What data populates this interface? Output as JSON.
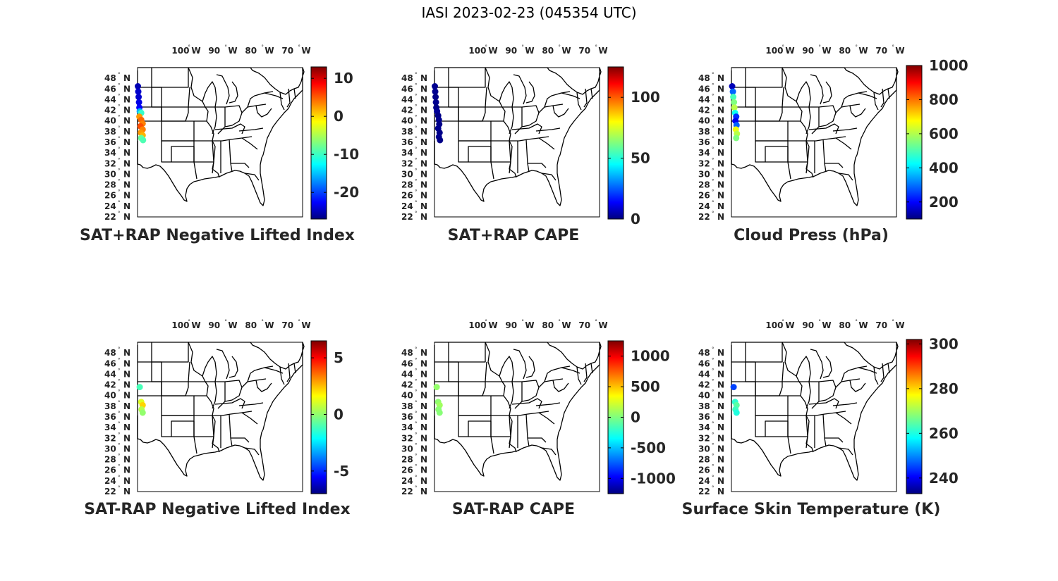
{
  "figure_title": "IASI 2023-02-23 (045354 UTC)",
  "lon_ticks": [
    {
      "deg": 100,
      "label": "100",
      "hemi": "W"
    },
    {
      "deg": 90,
      "label": "90",
      "hemi": "W"
    },
    {
      "deg": 80,
      "label": "80",
      "hemi": "W"
    },
    {
      "deg": 70,
      "label": "70",
      "hemi": "W"
    }
  ],
  "lat_ticks": [
    {
      "deg": 48,
      "label": "48",
      "hemi": "N"
    },
    {
      "deg": 46,
      "label": "46",
      "hemi": "N"
    },
    {
      "deg": 44,
      "label": "44",
      "hemi": "N"
    },
    {
      "deg": 42,
      "label": "42",
      "hemi": "N"
    },
    {
      "deg": 40,
      "label": "40",
      "hemi": "N"
    },
    {
      "deg": 38,
      "label": "38",
      "hemi": "N"
    },
    {
      "deg": 36,
      "label": "36",
      "hemi": "N"
    },
    {
      "deg": 34,
      "label": "34",
      "hemi": "N"
    },
    {
      "deg": 32,
      "label": "32",
      "hemi": "N"
    },
    {
      "deg": 30,
      "label": "30",
      "hemi": "N"
    },
    {
      "deg": 28,
      "label": "28",
      "hemi": "N"
    },
    {
      "deg": 26,
      "label": "26",
      "hemi": "N"
    },
    {
      "deg": 24,
      "label": "24",
      "hemi": "N"
    },
    {
      "deg": 22,
      "label": "22",
      "hemi": "N"
    }
  ],
  "map_extent": {
    "lon": [
      -112,
      -67
    ],
    "lat": [
      22,
      50
    ]
  },
  "colormap": "jet",
  "outline_color": "#000000",
  "panels": [
    {
      "title": "SAT+RAP Negative Lifted Index",
      "colorbar": {
        "min": -27,
        "max": 13,
        "ticks": [
          {
            "value": 10,
            "label": "10"
          },
          {
            "value": 0,
            "label": "0"
          },
          {
            "value": -10,
            "label": "-10"
          },
          {
            "value": -20,
            "label": "-20"
          }
        ]
      },
      "points": [
        {
          "lon": -111.9,
          "lat": 46.5,
          "value": -25
        },
        {
          "lon": -111.8,
          "lat": 45.5,
          "value": -24
        },
        {
          "lon": -111.7,
          "lat": 44.5,
          "value": -24
        },
        {
          "lon": -111.6,
          "lat": 43.5,
          "value": -23
        },
        {
          "lon": -111.5,
          "lat": 42.5,
          "value": -22
        },
        {
          "lon": -111.4,
          "lat": 41.8,
          "value": -15
        },
        {
          "lon": -111.0,
          "lat": 41.5,
          "value": -10
        },
        {
          "lon": -111.5,
          "lat": 40.8,
          "value": 2
        },
        {
          "lon": -111.0,
          "lat": 40.2,
          "value": 4
        },
        {
          "lon": -110.6,
          "lat": 39.5,
          "value": 3
        },
        {
          "lon": -111.2,
          "lat": 39.0,
          "value": 5
        },
        {
          "lon": -110.6,
          "lat": 38.4,
          "value": 3
        },
        {
          "lon": -111.1,
          "lat": 37.8,
          "value": 2
        },
        {
          "lon": -110.6,
          "lat": 37.3,
          "value": 1
        },
        {
          "lon": -111.0,
          "lat": 36.8,
          "value": -8
        },
        {
          "lon": -110.5,
          "lat": 36.4,
          "value": -9
        }
      ]
    },
    {
      "title": "SAT+RAP CAPE",
      "colorbar": {
        "min": 0,
        "max": 125,
        "ticks": [
          {
            "value": 100,
            "label": "100"
          },
          {
            "value": 50,
            "label": "50"
          },
          {
            "value": 0,
            "label": "0"
          }
        ]
      },
      "points": [
        {
          "lon": -111.9,
          "lat": 46.5,
          "value": 2
        },
        {
          "lon": -111.8,
          "lat": 45.5,
          "value": 2
        },
        {
          "lon": -111.7,
          "lat": 44.5,
          "value": 1
        },
        {
          "lon": -111.6,
          "lat": 43.5,
          "value": 2
        },
        {
          "lon": -111.5,
          "lat": 42.5,
          "value": 1
        },
        {
          "lon": -111.3,
          "lat": 41.8,
          "value": 3
        },
        {
          "lon": -111.0,
          "lat": 41.0,
          "value": 1
        },
        {
          "lon": -110.8,
          "lat": 40.2,
          "value": 2
        },
        {
          "lon": -110.7,
          "lat": 39.4,
          "value": 1
        },
        {
          "lon": -111.0,
          "lat": 38.6,
          "value": 2
        },
        {
          "lon": -110.6,
          "lat": 37.8,
          "value": 1
        },
        {
          "lon": -110.8,
          "lat": 37.0,
          "value": 2
        },
        {
          "lon": -110.5,
          "lat": 36.4,
          "value": 1
        }
      ]
    },
    {
      "title": "Cloud Press (hPa)",
      "colorbar": {
        "min": 100,
        "max": 1000,
        "ticks": [
          {
            "value": 1000,
            "label": "1000"
          },
          {
            "value": 800,
            "label": "800"
          },
          {
            "value": 600,
            "label": "600"
          },
          {
            "value": 400,
            "label": "400"
          },
          {
            "value": 200,
            "label": "200"
          }
        ]
      },
      "points": [
        {
          "lon": -111.8,
          "lat": 46.5,
          "value": 150
        },
        {
          "lon": -111.6,
          "lat": 45.5,
          "value": 300
        },
        {
          "lon": -111.5,
          "lat": 44.5,
          "value": 500
        },
        {
          "lon": -111.3,
          "lat": 43.5,
          "value": 550
        },
        {
          "lon": -111.2,
          "lat": 42.5,
          "value": 600
        },
        {
          "lon": -111.0,
          "lat": 41.5,
          "value": 450
        },
        {
          "lon": -110.7,
          "lat": 40.8,
          "value": 250
        },
        {
          "lon": -110.9,
          "lat": 40.0,
          "value": 200
        },
        {
          "lon": -110.6,
          "lat": 39.2,
          "value": 300
        },
        {
          "lon": -110.8,
          "lat": 38.4,
          "value": 650
        },
        {
          "lon": -110.5,
          "lat": 37.6,
          "value": 600
        },
        {
          "lon": -110.7,
          "lat": 36.8,
          "value": 550
        }
      ]
    },
    {
      "title": "SAT-RAP Negative Lifted Index",
      "colorbar": {
        "min": -7,
        "max": 6.5,
        "ticks": [
          {
            "value": 5,
            "label": "5"
          },
          {
            "value": 0,
            "label": "0"
          },
          {
            "value": -5,
            "label": "-5"
          }
        ]
      },
      "points": [
        {
          "lon": -111.4,
          "lat": 41.6,
          "value": -1
        },
        {
          "lon": -111.0,
          "lat": 38.8,
          "value": 1
        },
        {
          "lon": -110.6,
          "lat": 38.2,
          "value": 2
        },
        {
          "lon": -110.9,
          "lat": 37.4,
          "value": 0.5
        },
        {
          "lon": -110.6,
          "lat": 36.8,
          "value": 0
        }
      ]
    },
    {
      "title": "SAT-RAP CAPE",
      "colorbar": {
        "min": -1250,
        "max": 1250,
        "ticks": [
          {
            "value": 1000,
            "label": "1000"
          },
          {
            "value": 500,
            "label": "500"
          },
          {
            "value": 0,
            "label": "0"
          },
          {
            "value": -500,
            "label": "-500"
          },
          {
            "value": -1000,
            "label": "-1000"
          }
        ]
      },
      "points": [
        {
          "lon": -111.4,
          "lat": 41.6,
          "value": 50
        },
        {
          "lon": -111.0,
          "lat": 38.8,
          "value": 40
        },
        {
          "lon": -110.6,
          "lat": 38.2,
          "value": 80
        },
        {
          "lon": -110.9,
          "lat": 37.4,
          "value": 30
        },
        {
          "lon": -110.6,
          "lat": 36.8,
          "value": 20
        }
      ]
    },
    {
      "title": "Surface Skin Temperature (K)",
      "colorbar": {
        "min": 233,
        "max": 302,
        "ticks": [
          {
            "value": 300,
            "label": "300"
          },
          {
            "value": 280,
            "label": "280"
          },
          {
            "value": 260,
            "label": "260"
          },
          {
            "value": 240,
            "label": "240"
          }
        ]
      },
      "points": [
        {
          "lon": -111.4,
          "lat": 41.6,
          "value": 246
        },
        {
          "lon": -111.0,
          "lat": 38.8,
          "value": 262
        },
        {
          "lon": -110.6,
          "lat": 38.2,
          "value": 265
        },
        {
          "lon": -110.9,
          "lat": 37.4,
          "value": 263
        },
        {
          "lon": -110.6,
          "lat": 36.8,
          "value": 261
        }
      ]
    }
  ]
}
